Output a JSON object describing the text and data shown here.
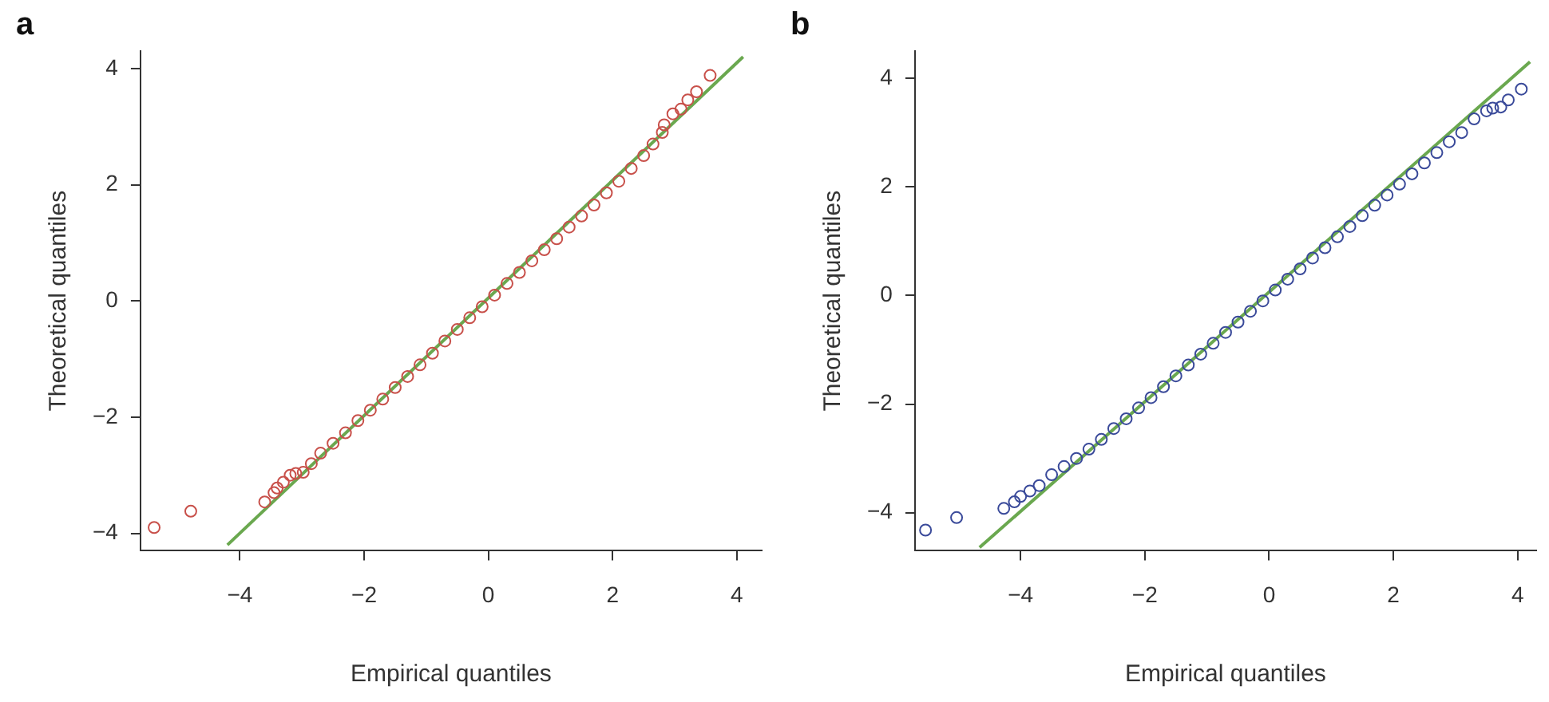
{
  "chart_data": [
    {
      "type": "scatter",
      "title": "a",
      "xlabel": "Empirical quantiles",
      "ylabel": "Theoretical quantiles",
      "xlim": [
        -5.6,
        4.4
      ],
      "ylim": [
        -4.3,
        4.3
      ],
      "xticks": [
        -4,
        -2,
        0,
        2,
        4
      ],
      "yticks": [
        -4,
        -2,
        0,
        2,
        4
      ],
      "grid": false,
      "legend": false,
      "marker": "circle",
      "series": [
        {
          "color": "#c8504a",
          "x": [
            -5.38,
            -4.79,
            -3.6,
            -3.45,
            -3.4,
            -3.3,
            -3.19,
            -3.1,
            -2.98,
            -2.85,
            -2.7,
            -2.5,
            -2.3,
            -2.1,
            -1.9,
            -1.7,
            -1.5,
            -1.3,
            -1.1,
            -0.9,
            -0.7,
            -0.5,
            -0.3,
            -0.1,
            0.1,
            0.3,
            0.5,
            0.7,
            0.9,
            1.1,
            1.3,
            1.5,
            1.7,
            1.9,
            2.1,
            2.3,
            2.5,
            2.65,
            2.8,
            2.83,
            2.97,
            3.1,
            3.21,
            3.35,
            3.57
          ],
          "values": [
            -3.9,
            -3.62,
            -3.46,
            -3.3,
            -3.22,
            -3.12,
            -3.0,
            -2.97,
            -2.95,
            -2.8,
            -2.62,
            -2.45,
            -2.27,
            -2.06,
            -1.88,
            -1.69,
            -1.49,
            -1.3,
            -1.1,
            -0.9,
            -0.69,
            -0.49,
            -0.29,
            -0.1,
            0.1,
            0.3,
            0.49,
            0.69,
            0.88,
            1.07,
            1.27,
            1.46,
            1.65,
            1.86,
            2.06,
            2.28,
            2.5,
            2.7,
            2.9,
            3.03,
            3.22,
            3.3,
            3.46,
            3.6,
            3.88
          ]
        },
        {
          "type": "line",
          "color": "#6aa84f",
          "marker": "none",
          "x": [
            -4.2,
            4.1
          ],
          "values": [
            -4.2,
            4.2
          ]
        }
      ]
    },
    {
      "type": "scatter",
      "title": "b",
      "xlabel": "Empirical quantiles",
      "ylabel": "Theoretical quantiles",
      "xlim": [
        -5.7,
        4.3
      ],
      "ylim": [
        -4.7,
        4.5
      ],
      "xticks": [
        -4,
        -2,
        0,
        2,
        4
      ],
      "yticks": [
        -4,
        -2,
        0,
        2,
        4
      ],
      "grid": false,
      "legend": false,
      "marker": "circle",
      "series": [
        {
          "color": "#3a4a9a",
          "x": [
            -5.53,
            -5.03,
            -4.27,
            -4.1,
            -4.0,
            -3.85,
            -3.7,
            -3.5,
            -3.3,
            -3.1,
            -2.9,
            -2.7,
            -2.5,
            -2.3,
            -2.1,
            -1.9,
            -1.7,
            -1.5,
            -1.3,
            -1.1,
            -0.9,
            -0.7,
            -0.5,
            -0.3,
            -0.1,
            0.1,
            0.3,
            0.5,
            0.7,
            0.9,
            1.1,
            1.3,
            1.5,
            1.7,
            1.9,
            2.1,
            2.3,
            2.5,
            2.7,
            2.9,
            3.1,
            3.3,
            3.5,
            3.6,
            3.73,
            3.85,
            4.06
          ],
          "values": [
            -4.32,
            -4.09,
            -3.92,
            -3.8,
            -3.7,
            -3.6,
            -3.5,
            -3.3,
            -3.15,
            -3.0,
            -2.83,
            -2.65,
            -2.45,
            -2.27,
            -2.07,
            -1.88,
            -1.68,
            -1.48,
            -1.28,
            -1.08,
            -0.88,
            -0.68,
            -0.49,
            -0.29,
            -0.1,
            0.1,
            0.3,
            0.49,
            0.69,
            0.88,
            1.08,
            1.27,
            1.47,
            1.66,
            1.85,
            2.05,
            2.24,
            2.44,
            2.63,
            2.83,
            3.0,
            3.25,
            3.4,
            3.45,
            3.47,
            3.6,
            3.8
          ]
        },
        {
          "type": "line",
          "color": "#6aa84f",
          "marker": "none",
          "x": [
            -4.66,
            4.2
          ],
          "values": [
            -4.64,
            4.3
          ]
        }
      ]
    }
  ]
}
